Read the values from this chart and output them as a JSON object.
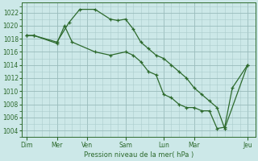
{
  "xlabel": "Pression niveau de la mer( hPa )",
  "bg_color": "#cce8e8",
  "line_color": "#2d6a2d",
  "grid_minor_color": "#aacccc",
  "grid_major_color": "#99bbbb",
  "ylim": [
    1003.0,
    1023.5
  ],
  "yticks": [
    1004,
    1006,
    1008,
    1010,
    1012,
    1014,
    1016,
    1018,
    1020,
    1022
  ],
  "xlim": [
    -0.3,
    15.0
  ],
  "day_labels": [
    "Dim",
    "Mer",
    "Ven",
    "Sam",
    "Lun",
    "Mar",
    "Jeu"
  ],
  "day_positions": [
    0.0,
    2.0,
    4.0,
    6.5,
    9.0,
    11.0,
    14.5
  ],
  "line1_x": [
    0.0,
    0.5,
    2.0,
    2.8,
    3.5,
    4.5,
    5.5,
    6.0,
    6.5,
    7.0,
    7.5,
    8.0,
    8.5,
    9.0,
    9.5,
    10.0,
    10.5,
    11.0,
    11.5,
    12.0,
    12.5,
    13.0,
    14.5
  ],
  "line1_y": [
    1018.5,
    1018.5,
    1017.5,
    1020.5,
    1022.5,
    1022.5,
    1021.0,
    1020.8,
    1021.0,
    1019.5,
    1017.5,
    1016.5,
    1015.5,
    1015.0,
    1014.0,
    1013.0,
    1012.0,
    1010.5,
    1009.5,
    1008.5,
    1007.5,
    1004.3,
    1014.0
  ],
  "line2_x": [
    0.0,
    0.5,
    2.0,
    2.5,
    3.0,
    4.5,
    5.5,
    6.5,
    7.0,
    7.5,
    8.0,
    8.5,
    9.0,
    9.5,
    10.0,
    10.5,
    11.0,
    11.5,
    12.0,
    12.5,
    13.0,
    13.5,
    14.5
  ],
  "line2_y": [
    1018.5,
    1018.5,
    1017.3,
    1020.0,
    1017.5,
    1016.0,
    1015.5,
    1016.0,
    1015.5,
    1014.5,
    1013.0,
    1012.5,
    1009.5,
    1009.0,
    1008.0,
    1007.5,
    1007.5,
    1007.0,
    1007.0,
    1004.3,
    1004.5,
    1010.5,
    1014.0
  ]
}
